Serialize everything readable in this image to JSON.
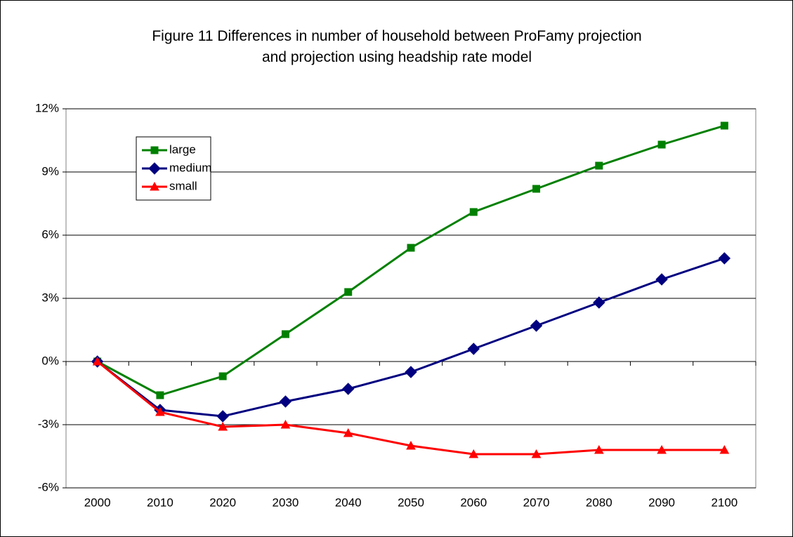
{
  "chart_data": {
    "type": "line",
    "title": "Figure 11 Differences in number of household between ProFamy projection and projection using headship rate model",
    "categories": [
      "2000",
      "2010",
      "2020",
      "2030",
      "2040",
      "2050",
      "2060",
      "2070",
      "2080",
      "2090",
      "2100"
    ],
    "series": [
      {
        "name": "large",
        "color": "#008000",
        "marker": "square",
        "values": [
          0,
          -1.6,
          -0.7,
          1.3,
          3.3,
          5.4,
          7.1,
          8.2,
          9.3,
          10.3,
          11.2
        ]
      },
      {
        "name": "medium",
        "color": "#000080",
        "marker": "diamond",
        "values": [
          0,
          -2.3,
          -2.6,
          -1.9,
          -1.3,
          -0.5,
          0.6,
          1.7,
          2.8,
          3.9,
          4.9
        ]
      },
      {
        "name": "small",
        "color": "#ff0000",
        "marker": "triangle",
        "values": [
          0,
          -2.4,
          -3.1,
          -3.0,
          -3.4,
          -4.0,
          -4.4,
          -4.4,
          -4.2,
          -4.2,
          -4.2
        ]
      }
    ],
    "ylim": [
      -6,
      12
    ],
    "yticks": [
      {
        "value": -6,
        "label": "-6%"
      },
      {
        "value": -3,
        "label": "-3%"
      },
      {
        "value": 0,
        "label": "0%"
      },
      {
        "value": 3,
        "label": "3%"
      },
      {
        "value": 6,
        "label": "6%"
      },
      {
        "value": 9,
        "label": "9%"
      },
      {
        "value": 12,
        "label": "12%"
      }
    ],
    "grid": true,
    "legend": "upper left"
  }
}
